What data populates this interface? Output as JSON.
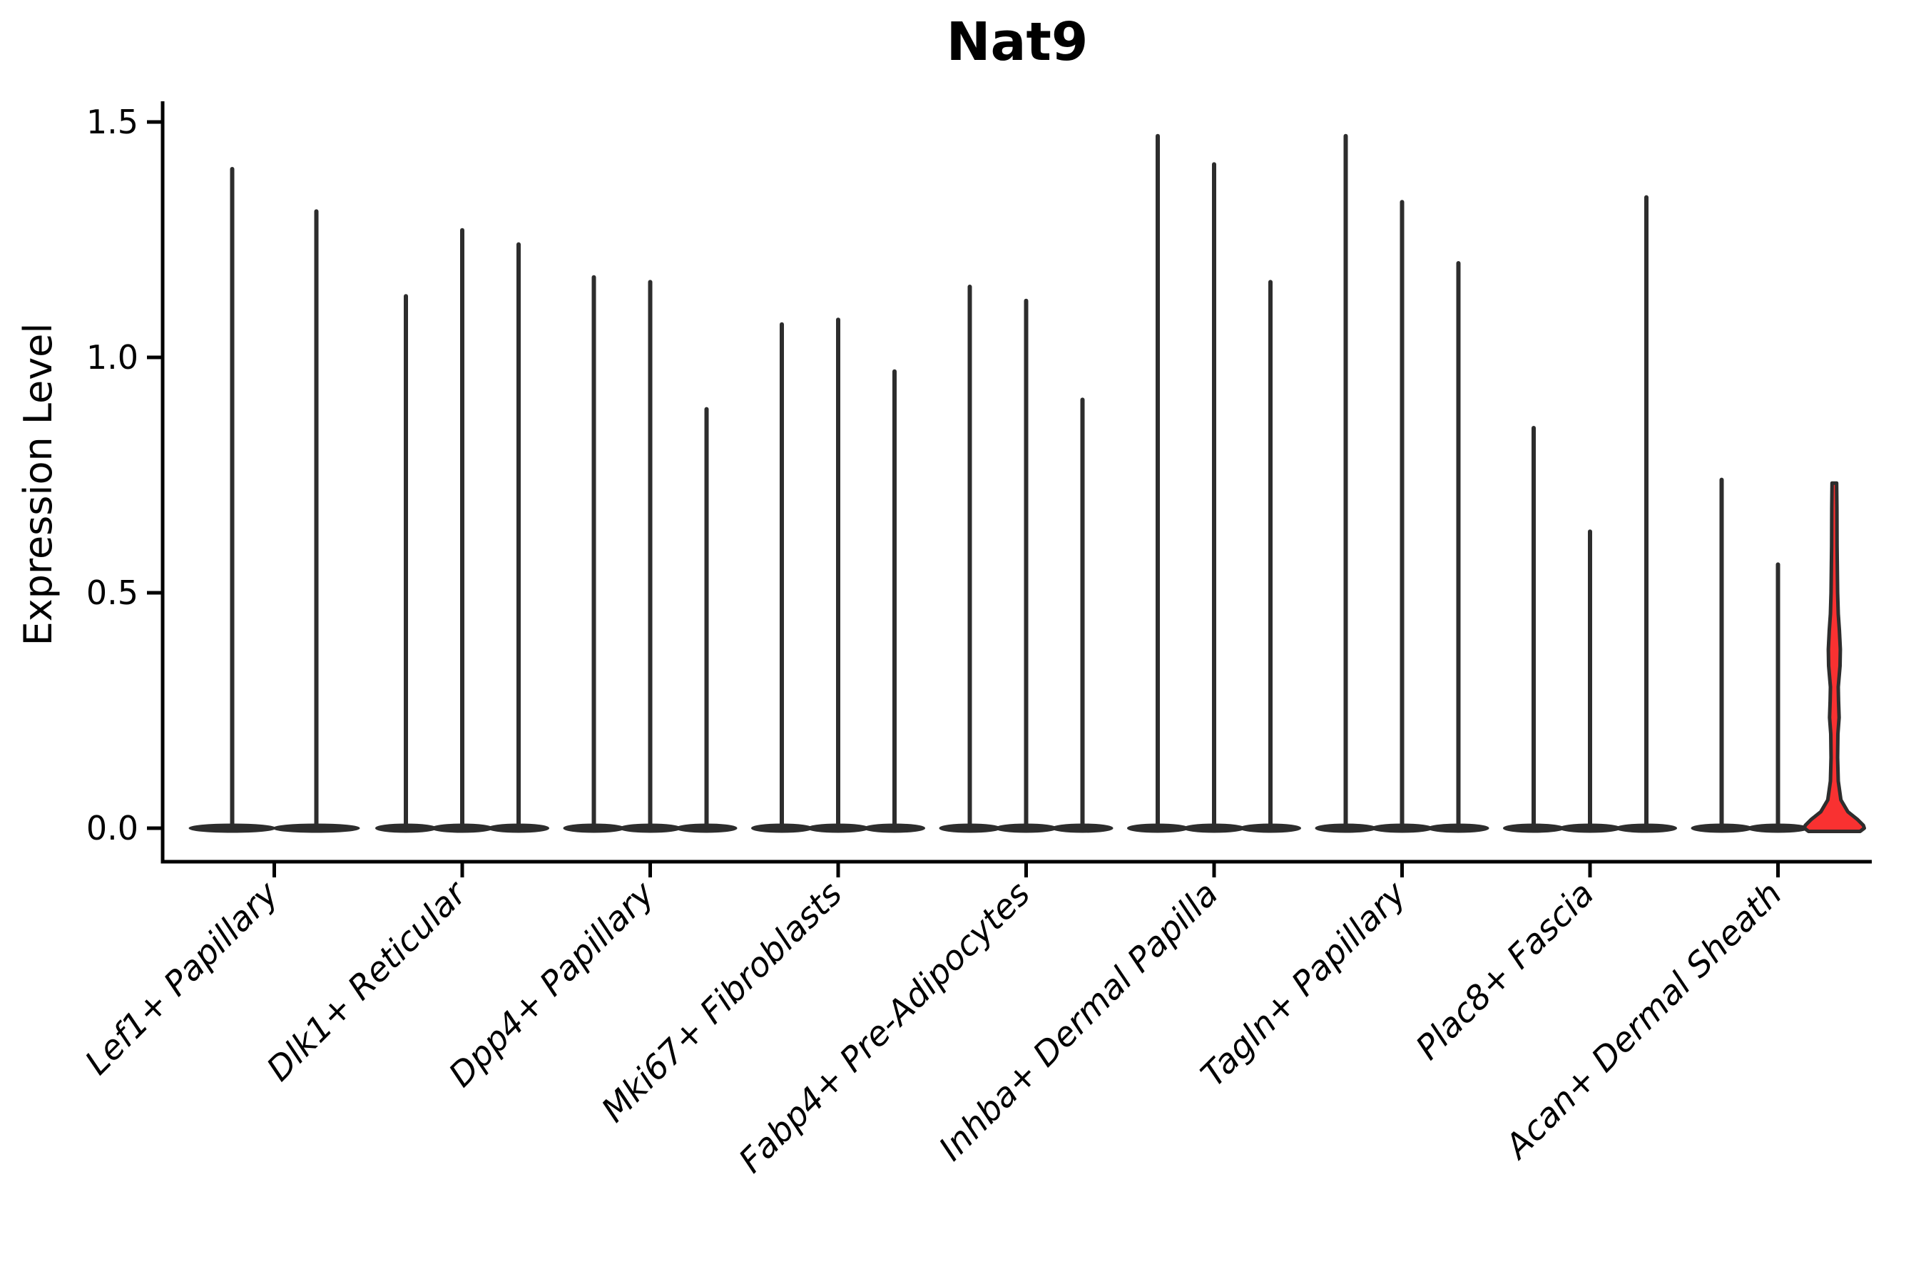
{
  "chart_data": {
    "type": "violin",
    "title": "Nat9",
    "ylabel": "Expression Level",
    "xlabel": "",
    "ylim": [
      0,
      1.5
    ],
    "yticks": [
      0.0,
      0.5,
      1.0,
      1.5
    ],
    "ytick_labels": [
      "0.0",
      "0.5",
      "1.0",
      "1.5"
    ],
    "x_tick_rotation": 45,
    "legend": "none",
    "grid": false,
    "background_color": "#ffffff",
    "axis_color": "#000000",
    "violin_stroke_color": "#2d2d2d",
    "highlight_fill_color": "#f93131",
    "categories": [
      "Lef1+ Papillary",
      "Dlk1+ Reticular",
      "Dpp4+ Papillary",
      "Mki67+ Fibroblasts",
      "Fabp4+ Pre-Adipocytes",
      "Inhba+ Dermal Papilla",
      "Tagln+ Papillary",
      "Plac8+ Fascia",
      "Acan+ Dermal Sheath"
    ],
    "groups": [
      {
        "label": "Lef1+ Papillary",
        "violins": [
          {
            "max": 1.4
          },
          {
            "max": 1.31
          }
        ]
      },
      {
        "label": "Dlk1+ Reticular",
        "violins": [
          {
            "max": 1.13
          },
          {
            "max": 1.27
          },
          {
            "max": 1.24
          }
        ]
      },
      {
        "label": "Dpp4+ Papillary",
        "violins": [
          {
            "max": 1.17
          },
          {
            "max": 1.16
          },
          {
            "max": 0.89
          }
        ]
      },
      {
        "label": "Mki67+ Fibroblasts",
        "violins": [
          {
            "max": 1.07
          },
          {
            "max": 1.08
          },
          {
            "max": 0.97
          }
        ]
      },
      {
        "label": "Fabp4+ Pre-Adipocytes",
        "violins": [
          {
            "max": 1.15
          },
          {
            "max": 1.12
          },
          {
            "max": 0.91
          }
        ]
      },
      {
        "label": "Inhba+ Dermal Papilla",
        "violins": [
          {
            "max": 1.47
          },
          {
            "max": 1.41
          },
          {
            "max": 1.16
          }
        ]
      },
      {
        "label": "Tagln+ Papillary",
        "violins": [
          {
            "max": 1.47
          },
          {
            "max": 1.33
          },
          {
            "max": 1.2
          }
        ]
      },
      {
        "label": "Plac8+ Fascia",
        "violins": [
          {
            "max": 0.85
          },
          {
            "max": 0.63
          },
          {
            "max": 1.34
          }
        ]
      },
      {
        "label": "Acan+ Dermal Sheath",
        "violins": [
          {
            "max": 0.74
          },
          {
            "max": 0.56
          },
          {
            "max": 0.73,
            "highlight": true,
            "fill": "#f93131",
            "profile": [
              [
                0.733,
                0.075
              ],
              [
                0.68,
                0.085
              ],
              [
                0.6,
                0.09
              ],
              [
                0.5,
                0.11
              ],
              [
                0.455,
                0.13
              ],
              [
                0.42,
                0.17
              ],
              [
                0.38,
                0.2
              ],
              [
                0.345,
                0.19
              ],
              [
                0.3,
                0.13
              ],
              [
                0.27,
                0.14
              ],
              [
                0.235,
                0.16
              ],
              [
                0.2,
                0.12
              ],
              [
                0.15,
                0.11
              ],
              [
                0.1,
                0.13
              ],
              [
                0.06,
                0.22
              ],
              [
                0.035,
                0.45
              ],
              [
                0.018,
                0.78
              ],
              [
                0.006,
                0.97
              ],
              [
                0.0,
                1.0
              ]
            ]
          }
        ]
      }
    ]
  }
}
